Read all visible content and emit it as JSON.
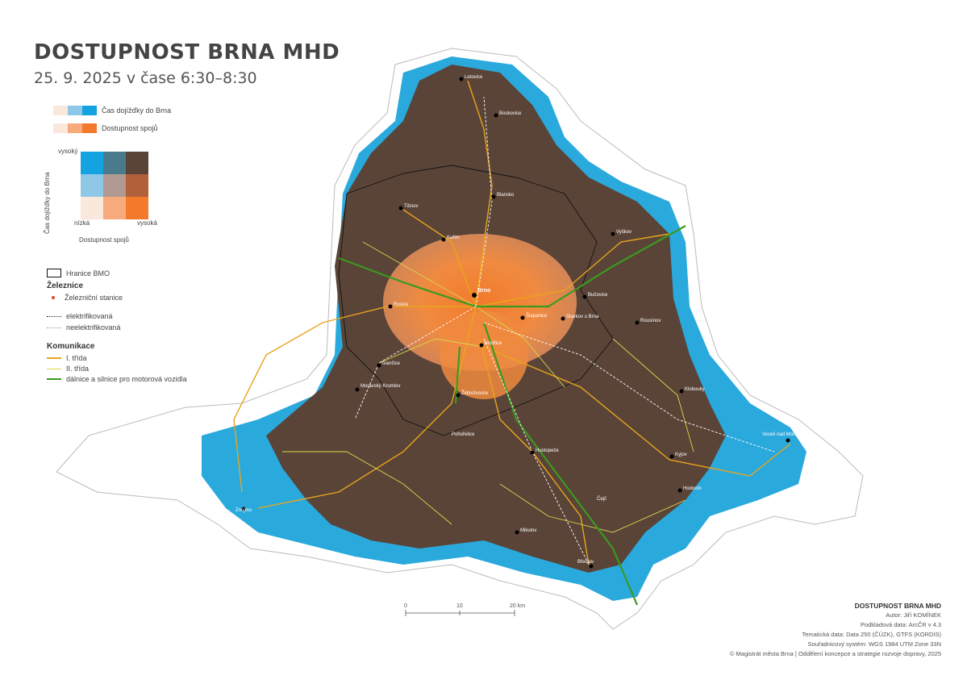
{
  "title": "DOSTUPNOST BRNA MHD",
  "subtitle": "25. 9. 2025 v čase 6:30–8:30",
  "legend": {
    "travel_time_label": "Čas dojížďky do Brna",
    "availability_label": "Dostupnost spojů",
    "travel_colors": [
      "#fbe8dc",
      "#8ec8e6",
      "#13a3e0"
    ],
    "availability_colors": [
      "#fbe8dc",
      "#f7aa7c",
      "#f27a2a"
    ],
    "bivariate_colors": [
      [
        "#13a3e0",
        "#4a7b8c",
        "#5a4438"
      ],
      [
        "#8ec8e6",
        "#b09a92",
        "#b2603a"
      ],
      [
        "#fbe8dc",
        "#f7aa7c",
        "#f27a2a"
      ]
    ],
    "y_axis_label": "Čas dojížďky do Brna",
    "y_high": "vysoký",
    "x_low": "nízká",
    "x_high": "vysoká",
    "x_axis_label": "Dostupnost spojů",
    "boundary_label": "Hranice BMO",
    "rail_title": "Železnice",
    "station_label": "Železniční stanice",
    "electrified_label": "elektrifikovaná",
    "non_electrified_label": "neelektrifikovaná",
    "roads_title": "Komunikace",
    "road1_label": "I. třída",
    "road2_label": "II. třída",
    "motorway_label": "dálnice a silnice pro motorová vozidla",
    "road1_color": "#e8a51c",
    "road2_color": "#d9d84a",
    "motorway_color": "#3a9a1f"
  },
  "scale": {
    "ticks": [
      "0",
      "10",
      "20 km"
    ]
  },
  "credits": {
    "title": "DOSTUPNOST BRNA MHD",
    "author": "Autor: Jiří KOMÍNEK",
    "base_data": "Podkladová data: ArcČR v 4.3",
    "thematic": "Tematická data: Data 250 (ČÚZK), GTFS (KORDIS)",
    "crs": "Souřadnicový systém: WGS 1984 UTM Zone 33N",
    "copyright": "© Magistrát města Brna | Oddělení koncepce a strategie rozvoje dopravy, 2025"
  },
  "places": [
    {
      "name": "Letovice"
    },
    {
      "name": "Boskovice"
    },
    {
      "name": "Blansko"
    },
    {
      "name": "Tišnov"
    },
    {
      "name": "Kuřim"
    },
    {
      "name": "Brno"
    },
    {
      "name": "Rosice"
    },
    {
      "name": "Šlapanice"
    },
    {
      "name": "Modřice"
    },
    {
      "name": "Ivančice"
    },
    {
      "name": "Moravský Krumlov"
    },
    {
      "name": "Židlochovice"
    },
    {
      "name": "Hustopeče"
    },
    {
      "name": "Vyškov"
    },
    {
      "name": "Bučovice"
    },
    {
      "name": "Slavkov u Brna"
    },
    {
      "name": "Kyjov"
    },
    {
      "name": "Veselí nad Moravou"
    },
    {
      "name": "Hodonín"
    },
    {
      "name": "Břeclav"
    },
    {
      "name": "Mikulov"
    },
    {
      "name": "Znojmo"
    },
    {
      "name": "Pohořelice"
    },
    {
      "name": "Čejč"
    },
    {
      "name": "Klobouky"
    },
    {
      "name": "Rousínov"
    }
  ]
}
